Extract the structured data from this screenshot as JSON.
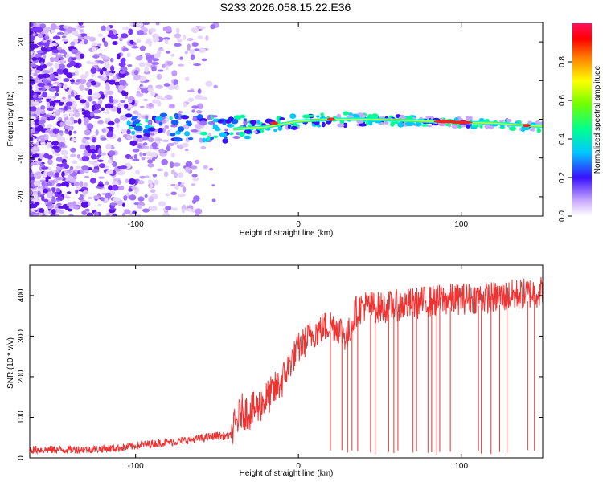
{
  "title": "S233.2026.058.15.22.E36",
  "colors": {
    "snr_line": "#ee3333",
    "spectrogram_low": "#a070ff",
    "spectrogram_core": "#2050ff",
    "ridge": "#00ffcc",
    "ridge_hot": "#ff2020"
  },
  "chart_data": [
    {
      "type": "heatmap",
      "name": "spectrogram",
      "xlabel": "Height of straight line (km)",
      "ylabel": "Frequency (Hz)",
      "xlim": [
        -165,
        150
      ],
      "ylim": [
        -25,
        25
      ],
      "xticks": [
        -100,
        0,
        100
      ],
      "xtick_labels": [
        "-100",
        "0",
        "100"
      ],
      "yticks": [
        -20,
        -10,
        0,
        10,
        20
      ],
      "ytick_labels": [
        "-20",
        "-10",
        "0",
        "10",
        "20"
      ],
      "ridge_path": {
        "x": [
          -100,
          -80,
          -60,
          -40,
          -20,
          0,
          20,
          40,
          60,
          80,
          100,
          120,
          140,
          150
        ],
        "freq": [
          -2.0,
          -2.0,
          -2.2,
          -2.5,
          -2.0,
          -0.5,
          0,
          0,
          -0.2,
          -0.5,
          -0.8,
          -1.0,
          -1.6,
          -1.8
        ]
      },
      "colorbar": {
        "label": "Normalized spectral amplitude",
        "range": [
          0,
          1
        ],
        "ticks": [
          0.0,
          0.2,
          0.4,
          0.6,
          0.8
        ],
        "tick_labels": [
          "0.0",
          "0.2",
          "0.4",
          "0.6",
          "0.8"
        ]
      }
    },
    {
      "type": "line",
      "name": "snr",
      "xlabel": "Height of straight line (km)",
      "ylabel": "SNR (10 * v/v)",
      "xlim": [
        -165,
        150
      ],
      "ylim": [
        0,
        475
      ],
      "xticks": [
        -100,
        0,
        100
      ],
      "xtick_labels": [
        "-100",
        "0",
        "100"
      ],
      "yticks": [
        0,
        100,
        200,
        300,
        400
      ],
      "ytick_labels": [
        "0",
        "100",
        "200",
        "300",
        "400"
      ],
      "series": [
        {
          "name": "SNR",
          "x": [
            -165,
            -150,
            -130,
            -110,
            -90,
            -75,
            -60,
            -50,
            -42,
            -35,
            -30,
            -25,
            -20,
            -15,
            -10,
            -5,
            0,
            5,
            10,
            15,
            20,
            25,
            30,
            35,
            40,
            50,
            60,
            70,
            80,
            90,
            100,
            110,
            120,
            130,
            140,
            150
          ],
          "values": [
            20,
            20,
            21,
            24,
            35,
            40,
            48,
            55,
            52,
            115,
            112,
            125,
            145,
            165,
            190,
            235,
            270,
            290,
            310,
            320,
            330,
            320,
            295,
            360,
            375,
            370,
            375,
            380,
            385,
            390,
            392,
            395,
            395,
            400,
            405,
            410
          ]
        }
      ]
    }
  ]
}
